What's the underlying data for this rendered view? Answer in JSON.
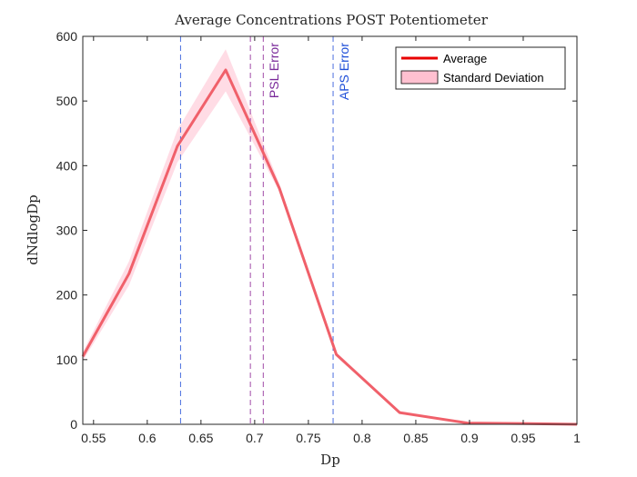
{
  "chart_data": {
    "type": "line",
    "title": "Average Concentrations POST Potentiometer",
    "xlabel": "Dp",
    "ylabel": "dNdlogDp",
    "xlim": [
      0.54,
      1.0
    ],
    "ylim": [
      0,
      600
    ],
    "xticks": [
      0.55,
      0.6,
      0.65,
      0.7,
      0.75,
      0.8,
      0.85,
      0.9,
      0.95,
      1
    ],
    "xtick_labels": [
      "0.55",
      "0.6",
      "0.65",
      "0.7",
      "0.75",
      "0.8",
      "0.85",
      "0.9",
      "0.95",
      "1"
    ],
    "yticks": [
      0,
      100,
      200,
      300,
      400,
      500,
      600
    ],
    "ytick_labels": [
      "0",
      "100",
      "200",
      "300",
      "400",
      "500",
      "600"
    ],
    "grid": false,
    "legend": "top-right",
    "series": [
      {
        "name": "Average",
        "color": "#f0606a",
        "x": [
          0.54,
          0.583,
          0.628,
          0.673,
          0.723,
          0.776,
          0.835,
          0.898,
          0.955,
          1.0
        ],
        "y": [
          105,
          233,
          430,
          548,
          365,
          108,
          18,
          2,
          1,
          0
        ]
      },
      {
        "name": "Standard Deviation",
        "color": "#ffc0d0",
        "x": [
          0.54,
          0.583,
          0.628,
          0.673,
          0.723,
          0.776,
          0.835,
          0.898,
          0.955,
          1.0
        ],
        "lower": [
          98,
          215,
          405,
          515,
          360,
          105,
          16,
          1,
          0,
          0
        ],
        "upper": [
          112,
          252,
          455,
          580,
          372,
          111,
          21,
          3,
          2,
          1
        ]
      }
    ],
    "vlines": [
      {
        "x": 0.631,
        "color": "#4a6ee0"
      },
      {
        "x": 0.773,
        "color": "#4a6ee0"
      },
      {
        "x": 0.696,
        "color": "#a04aa8"
      },
      {
        "x": 0.708,
        "color": "#a04aa8"
      }
    ],
    "annotations": [
      {
        "text": "PSL Error",
        "x": 0.718,
        "y": 590,
        "color": "#7a2a9a"
      },
      {
        "text": "APS Error",
        "x": 0.783,
        "y": 590,
        "color": "#1f4fd8"
      }
    ]
  }
}
